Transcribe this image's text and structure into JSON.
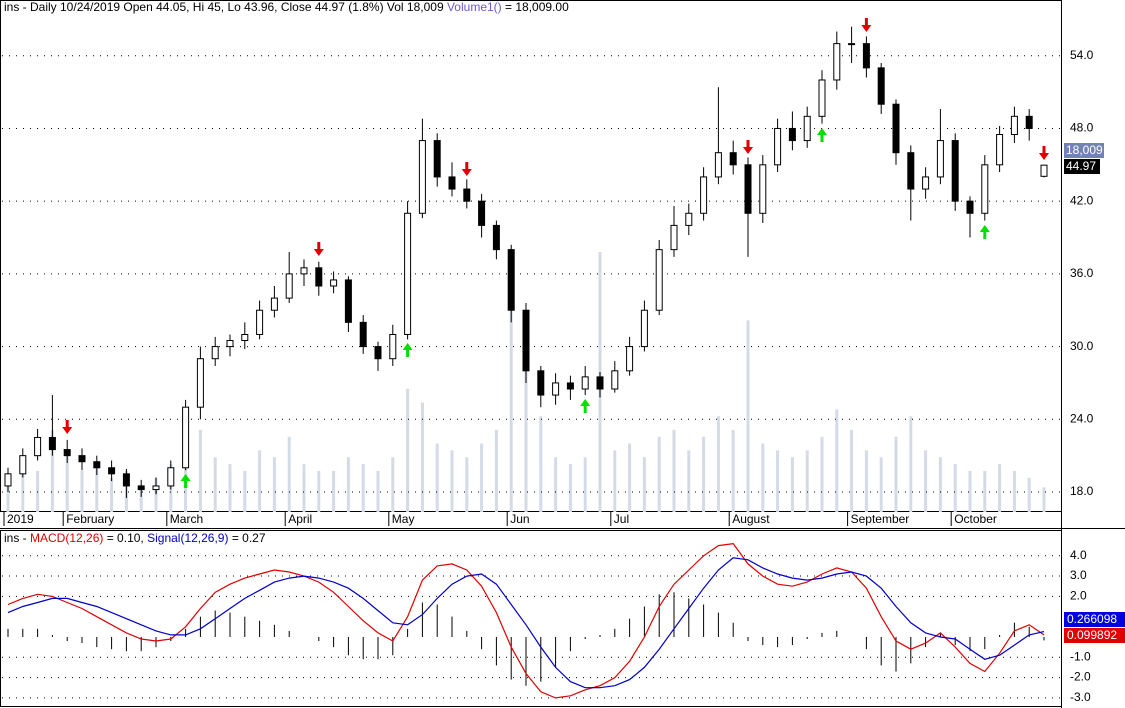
{
  "chart_data": [
    {
      "type": "candlestick",
      "title": "ins - Daily 10/24/2019 Open 44.05, Hi 45, Lo 43.96, Close 44.97 (1.8%) Vol 18,009",
      "volume_name": "Volume1()",
      "volume_readout": "= 18,009.00",
      "volume_tag": "18,009",
      "close_tag": "44.97",
      "categories": [
        "2019",
        null,
        null,
        null,
        "February",
        null,
        null,
        null,
        null,
        null,
        null,
        "March",
        null,
        null,
        null,
        null,
        null,
        null,
        null,
        "April",
        null,
        null,
        null,
        null,
        null,
        null,
        "May",
        null,
        null,
        null,
        null,
        null,
        null,
        null,
        "Jun",
        null,
        null,
        null,
        null,
        null,
        null,
        "Jul",
        null,
        null,
        null,
        null,
        null,
        null,
        null,
        "August",
        null,
        null,
        null,
        null,
        null,
        null,
        null,
        "September",
        null,
        null,
        null,
        null,
        null,
        null,
        "October",
        null,
        null,
        null,
        null,
        null,
        null
      ],
      "ohlc": [
        [
          18.5,
          20,
          18,
          19.5
        ],
        [
          19.5,
          21.6,
          19.2,
          21
        ],
        [
          21,
          23.2,
          20.6,
          22.5
        ],
        [
          22.5,
          26,
          21,
          21.5
        ],
        [
          21.5,
          22.3,
          20.4,
          21
        ],
        [
          21,
          21.6,
          19.8,
          20.5
        ],
        [
          20.5,
          21,
          19.4,
          20
        ],
        [
          20,
          20.6,
          18.9,
          19.5
        ],
        [
          19.5,
          19.9,
          17.5,
          18.5
        ],
        [
          18.5,
          19,
          17.6,
          18.2
        ],
        [
          18.2,
          19.2,
          17.8,
          18.5
        ],
        [
          18.5,
          20.6,
          18.2,
          20
        ],
        [
          20,
          25.6,
          19.8,
          25
        ],
        [
          25,
          30,
          24,
          29
        ],
        [
          29,
          30.8,
          28.4,
          30
        ],
        [
          30,
          31,
          29.2,
          30.5
        ],
        [
          30.5,
          32,
          29.8,
          31
        ],
        [
          31,
          33.8,
          30.6,
          33
        ],
        [
          33,
          35,
          32.4,
          34
        ],
        [
          34,
          37.8,
          33.6,
          36
        ],
        [
          36,
          37.2,
          35,
          36.5
        ],
        [
          36.5,
          37,
          34.2,
          35
        ],
        [
          35,
          36.2,
          34.4,
          35.5
        ],
        [
          35.5,
          35.8,
          31.2,
          32
        ],
        [
          32,
          32.6,
          29.4,
          30
        ],
        [
          30,
          30.4,
          28,
          29
        ],
        [
          29,
          31.8,
          28.4,
          31
        ],
        [
          31,
          42,
          30.6,
          41
        ],
        [
          41,
          48.8,
          40.6,
          47
        ],
        [
          47,
          47.6,
          43.2,
          44
        ],
        [
          44,
          45.2,
          42.4,
          43
        ],
        [
          43,
          43.8,
          41.4,
          42
        ],
        [
          42,
          42.6,
          39,
          40
        ],
        [
          40,
          40.4,
          37.2,
          38
        ],
        [
          38,
          38.4,
          32,
          33
        ],
        [
          33,
          33.6,
          27,
          28
        ],
        [
          28,
          28.4,
          25,
          26
        ],
        [
          26,
          27.8,
          25.2,
          27
        ],
        [
          27,
          27.6,
          25.6,
          26.5
        ],
        [
          26.5,
          28.4,
          26,
          27.5
        ],
        [
          27.5,
          27.9,
          25.8,
          26.5
        ],
        [
          26.5,
          28.8,
          26.2,
          28
        ],
        [
          28,
          30.8,
          27.6,
          30
        ],
        [
          30,
          33.8,
          29.6,
          33
        ],
        [
          33,
          38.8,
          32.6,
          38
        ],
        [
          38,
          41.6,
          37.4,
          40
        ],
        [
          40,
          41.8,
          39.2,
          41
        ],
        [
          41,
          44.8,
          40.4,
          44
        ],
        [
          44,
          51.4,
          43.4,
          46
        ],
        [
          46,
          47,
          44.2,
          45
        ],
        [
          45,
          45.6,
          37.4,
          41
        ],
        [
          41,
          45.8,
          40.2,
          45
        ],
        [
          45,
          48.8,
          44.4,
          48
        ],
        [
          48,
          49.4,
          46.2,
          47
        ],
        [
          47,
          49.8,
          46.4,
          49
        ],
        [
          49,
          52.8,
          48.4,
          52
        ],
        [
          52,
          56,
          51.2,
          55
        ],
        [
          55,
          56.4,
          53.4,
          55
        ],
        [
          55,
          55.6,
          52.2,
          53
        ],
        [
          53,
          53.4,
          49.2,
          50
        ],
        [
          50,
          50.4,
          45,
          46
        ],
        [
          46,
          46.6,
          40.4,
          43
        ],
        [
          43,
          44.8,
          42.2,
          44
        ],
        [
          44,
          49.6,
          43.4,
          47
        ],
        [
          47,
          47.6,
          41.2,
          42
        ],
        [
          42,
          42.4,
          39,
          41
        ],
        [
          41,
          45.8,
          40.4,
          45
        ],
        [
          45,
          48.2,
          44.4,
          47.5
        ],
        [
          47.5,
          49.8,
          46.8,
          49
        ],
        [
          49,
          49.6,
          47,
          48
        ],
        [
          44.05,
          45,
          43.96,
          44.97
        ]
      ],
      "volume": [
        20000,
        40000,
        30000,
        60000,
        45000,
        30000,
        35000,
        25000,
        30000,
        20000,
        25000,
        35000,
        70000,
        60000,
        40000,
        35000,
        30000,
        45000,
        40000,
        55000,
        35000,
        30000,
        30000,
        40000,
        35000,
        30000,
        40000,
        90000,
        80000,
        50000,
        45000,
        40000,
        50000,
        60000,
        150000,
        120000,
        70000,
        40000,
        35000,
        40000,
        190000,
        45000,
        50000,
        40000,
        55000,
        60000,
        45000,
        55000,
        70000,
        60000,
        140000,
        50000,
        45000,
        40000,
        45000,
        55000,
        75000,
        60000,
        45000,
        40000,
        55000,
        70000,
        45000,
        40000,
        35000,
        30000,
        30000,
        35000,
        30000,
        25000,
        18009
      ],
      "volume_color": "#d4dbe6",
      "ylim": [
        16.35,
        58.6
      ],
      "yticks": [
        {
          "value": 18,
          "label": "18.0"
        },
        {
          "value": 24,
          "label": "24.0"
        },
        {
          "value": 30,
          "label": "30.0"
        },
        {
          "value": 36,
          "label": "36.0"
        },
        {
          "value": 42,
          "label": "42.0"
        },
        {
          "value": 48,
          "label": "48.0"
        },
        {
          "value": 54,
          "label": "54.0"
        }
      ],
      "grid": true
    },
    {
      "type": "line",
      "title_prefix": "ins -",
      "readouts": [
        "= 0.10,",
        "= 0.27"
      ],
      "series": [
        {
          "name": "MACD(12,26)",
          "color": "#e00000",
          "values": [
            1.6,
            1.9,
            2.1,
            2.0,
            1.7,
            1.4,
            1.0,
            0.6,
            0.2,
            -0.1,
            -0.2,
            -0.1,
            0.5,
            1.4,
            2.2,
            2.6,
            2.9,
            3.1,
            3.3,
            3.2,
            3.0,
            2.7,
            2.2,
            1.5,
            0.8,
            0.2,
            -0.2,
            1.0,
            2.8,
            3.5,
            3.6,
            3.3,
            2.5,
            1.2,
            -0.5,
            -1.8,
            -2.7,
            -3.0,
            -2.9,
            -2.6,
            -2.4,
            -2.0,
            -1.2,
            0.0,
            1.5,
            2.6,
            3.3,
            4.0,
            4.5,
            4.6,
            3.6,
            3.0,
            2.6,
            2.5,
            2.7,
            3.1,
            3.4,
            3.2,
            2.4,
            1.0,
            -0.2,
            -0.6,
            -0.3,
            0.2,
            -0.5,
            -1.3,
            -1.7,
            -0.8,
            0.3,
            0.6,
            0.099892
          ]
        },
        {
          "name": "Signal(12,26,9)",
          "color": "#0000c8",
          "values": [
            1.2,
            1.5,
            1.7,
            1.9,
            1.9,
            1.7,
            1.5,
            1.2,
            0.9,
            0.6,
            0.3,
            0.1,
            0.1,
            0.4,
            0.9,
            1.4,
            1.9,
            2.3,
            2.7,
            2.9,
            3.0,
            2.9,
            2.7,
            2.4,
            1.9,
            1.3,
            0.7,
            0.6,
            1.1,
            1.9,
            2.6,
            3.0,
            3.1,
            2.6,
            1.6,
            0.6,
            -0.5,
            -1.5,
            -2.2,
            -2.5,
            -2.5,
            -2.4,
            -2.1,
            -1.5,
            -0.6,
            0.4,
            1.4,
            2.4,
            3.3,
            3.9,
            3.8,
            3.4,
            3.1,
            2.9,
            2.8,
            2.9,
            3.1,
            3.2,
            3.0,
            2.4,
            1.5,
            0.7,
            0.2,
            0.0,
            -0.1,
            -0.6,
            -1.1,
            -0.9,
            -0.4,
            0.1,
            0.266098
          ]
        }
      ],
      "histogram": [
        0.4,
        0.4,
        0.4,
        0.1,
        -0.2,
        -0.3,
        -0.5,
        -0.6,
        -0.7,
        -0.7,
        -0.5,
        -0.2,
        0.4,
        1.0,
        1.3,
        1.2,
        1.0,
        0.8,
        0.6,
        0.3,
        0,
        -0.2,
        -0.5,
        -0.9,
        -1.1,
        -1.1,
        -0.9,
        0.4,
        1.7,
        1.6,
        1.0,
        0.3,
        -0.6,
        -1.4,
        -2.1,
        -2.4,
        -2.2,
        -1.5,
        -0.7,
        -0.1,
        0.1,
        0.4,
        0.9,
        1.5,
        2.1,
        2.2,
        1.9,
        1.6,
        1.2,
        0.7,
        -0.2,
        -0.4,
        -0.5,
        -0.4,
        -0.1,
        0.2,
        0.3,
        0,
        -0.6,
        -1.4,
        -1.7,
        -1.3,
        -0.5,
        0.2,
        -0.4,
        -0.7,
        -0.6,
        0.1,
        0.7,
        0.5,
        -0.166206
      ],
      "tags": [
        "0.266098",
        "0.099892"
      ],
      "ylim": [
        -3.4,
        5.17
      ],
      "yticks": [
        {
          "value": 4,
          "label": "4.0"
        },
        {
          "value": 3,
          "label": "3.0"
        },
        {
          "value": 2,
          "label": "2.0"
        },
        {
          "value": -1,
          "label": "-1.0"
        },
        {
          "value": -2,
          "label": "-2.0"
        },
        {
          "value": -3,
          "label": "-3.0"
        }
      ],
      "grid": true
    }
  ]
}
